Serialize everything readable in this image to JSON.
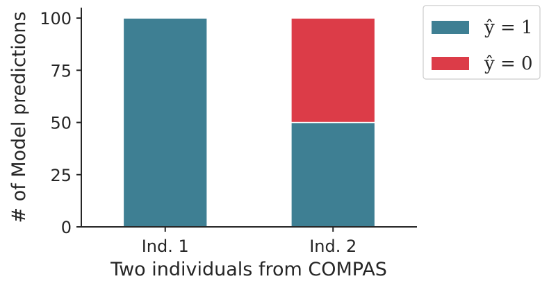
{
  "chart_data": {
    "type": "bar",
    "stacked": true,
    "categories": [
      "Ind. 1",
      "Ind. 2"
    ],
    "series": [
      {
        "name": "ŷ = 1",
        "values": [
          100,
          50
        ],
        "color": "#3e7f93"
      },
      {
        "name": "ŷ = 0",
        "values": [
          0,
          50
        ],
        "color": "#dc3c48"
      }
    ],
    "title": "",
    "xlabel": "Two individuals from COMPAS",
    "ylabel": "# of Model predictions",
    "ylim": [
      0,
      105
    ],
    "yticks": [
      0,
      25,
      50,
      75,
      100
    ],
    "grid": false,
    "legend": {
      "placement": "outside-top-right"
    }
  }
}
